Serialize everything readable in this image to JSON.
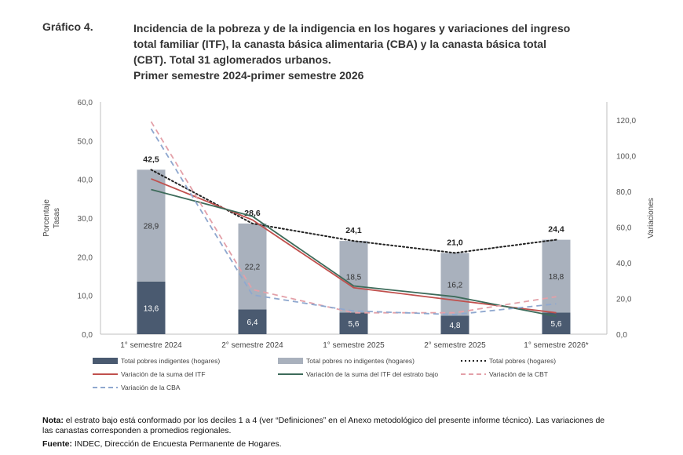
{
  "header": {
    "label": "Gráfico 4.",
    "title_lines": [
      "Incidencia de la pobreza y de la indigencia en los hogares y variaciones del ingreso",
      "total familiar (ITF), la canasta básica alimentaria (CBA) y la canasta básica total",
      "(CBT). Total 31 aglomerados urbanos.",
      "Primer semestre 2024-primer semestre 2026"
    ]
  },
  "chart_data": {
    "type": "bar",
    "categories": [
      "1° semestre 2024",
      "2° semestre 2024",
      "1° semestre 2025",
      "2° semestre 2025",
      "1° semestre 2026*"
    ],
    "ylabel": "Porcentaje\nTasas",
    "y2label": "Variaciones",
    "ylim": [
      0,
      60
    ],
    "y2lim": [
      0,
      130
    ],
    "yticks": [
      "0,0",
      "10,0",
      "20,0",
      "30,0",
      "40,0",
      "50,0",
      "60,0"
    ],
    "y2ticks": [
      "0,0",
      "20,0",
      "40,0",
      "60,0",
      "80,0",
      "100,0",
      "120,0"
    ],
    "y2tick_values": [
      0,
      20,
      40,
      60,
      80,
      100,
      120
    ],
    "series": [
      {
        "name": "Total pobres indigentes (hogares)",
        "kind": "bar-stack-bottom",
        "color": "#4a5a70",
        "values": [
          13.6,
          6.4,
          5.6,
          4.8,
          5.6
        ],
        "labels": [
          "13,6",
          "6,4",
          "5,6",
          "4,8",
          "5,6"
        ]
      },
      {
        "name": "Total pobres no indigentes (hogares)",
        "kind": "bar-stack-top",
        "color": "#a9b1bd",
        "values": [
          28.9,
          22.2,
          18.5,
          16.2,
          18.8
        ],
        "labels": [
          "28,9",
          "22,2",
          "18,5",
          "16,2",
          "18,8"
        ]
      },
      {
        "name": "Total pobres (hogares)",
        "kind": "line-dotted",
        "axis": "left",
        "color": "#222222",
        "values": [
          42.5,
          28.6,
          24.1,
          21.0,
          24.4
        ],
        "labels": [
          "42,5",
          "28,6",
          "24,1",
          "21,0",
          "24,4"
        ]
      },
      {
        "name": "Variación de la suma del ITF",
        "kind": "line",
        "axis": "right",
        "color": "#c0504d",
        "values": [
          87,
          64,
          26,
          19,
          12
        ]
      },
      {
        "name": "Variación de la suma del ITF del estrato bajo",
        "kind": "line",
        "axis": "right",
        "color": "#3d6b5a",
        "values": [
          81,
          66,
          27,
          21,
          10
        ]
      },
      {
        "name": "Variación de la CBT",
        "kind": "line-dashed",
        "axis": "right",
        "color": "#e3a0a8",
        "values": [
          119,
          25,
          12,
          12,
          21
        ]
      },
      {
        "name": "Variación de la CBA",
        "kind": "line-dashed",
        "axis": "right",
        "color": "#8fa8cf",
        "values": [
          115,
          22,
          13,
          11,
          17
        ]
      }
    ],
    "legend_position": "bottom",
    "grid": false
  },
  "notes": {
    "note_label": "Nota:",
    "note_text": " el estrato bajo está conformado por los deciles 1 a 4 (ver “Definiciones” en el Anexo metodológico del presente informe técnico). Las variaciones de",
    "note_text2": "las canastas corresponden a promedios regionales.",
    "source_label": "Fuente:",
    "source_text": " INDEC, Dirección de Encuesta Permanente de Hogares."
  }
}
